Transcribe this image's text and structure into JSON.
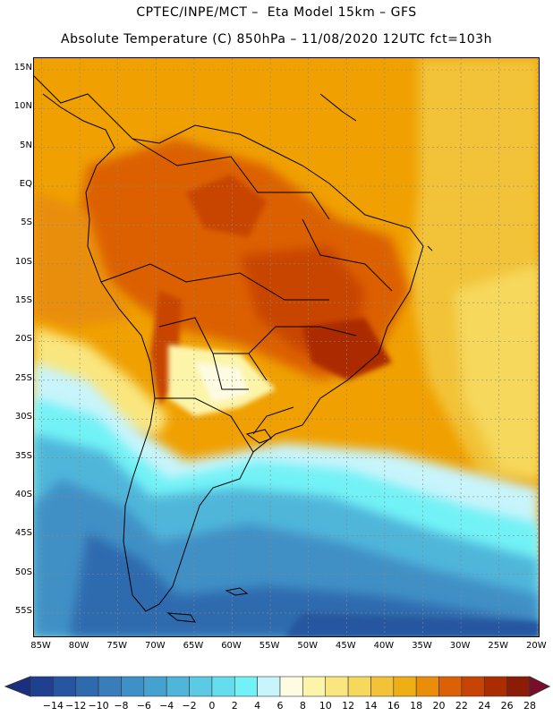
{
  "title": {
    "line1": "CPTEC/INPE/MCT –  Eta Model 15km – GFS",
    "line2": "Absolute Temperature (C) 850hPa – 11/08/2020 12UTC fct=103h"
  },
  "map": {
    "lat_labels": [
      "15N",
      "10N",
      "5N",
      "EQ",
      "5S",
      "10S",
      "15S",
      "20S",
      "25S",
      "30S",
      "35S",
      "40S",
      "45S",
      "50S",
      "55S"
    ],
    "lon_labels": [
      "85W",
      "80W",
      "75W",
      "70W",
      "65W",
      "60W",
      "55W",
      "50W",
      "45W",
      "40W",
      "35W",
      "30W",
      "25W",
      "20W"
    ],
    "lat_values": [
      15,
      10,
      5,
      0,
      -5,
      -10,
      -15,
      -20,
      -25,
      -30,
      -35,
      -40,
      -45,
      -50,
      -55
    ],
    "lon_values": [
      -85,
      -80,
      -75,
      -70,
      -65,
      -60,
      -55,
      -50,
      -45,
      -40,
      -35,
      -30,
      -25,
      -20
    ],
    "lat_range": [
      -58,
      16.5
    ],
    "lon_range": [
      -86,
      -19.8
    ]
  },
  "colorbar": {
    "labels": [
      "-14",
      "-12",
      "-10",
      "-8",
      "-6",
      "-4",
      "-2",
      "0",
      "2",
      "4",
      "6",
      "8",
      "10",
      "12",
      "14",
      "16",
      "18",
      "20",
      "22",
      "24",
      "26",
      "28"
    ],
    "colors": [
      "#1f3f8f",
      "#26569f",
      "#2f6aae",
      "#3a7dbb",
      "#3f90c6",
      "#45a2cf",
      "#4fb6da",
      "#5cc9e5",
      "#66dded",
      "#72f2f6",
      "#c8f4fb",
      "#fdfbe2",
      "#fcf4a8",
      "#f9e67e",
      "#f6d85c",
      "#f2c338",
      "#eeae16",
      "#e98d0a",
      "#dc6105",
      "#c84404",
      "#ac2c02",
      "#8b1c08"
    ],
    "under_color": "#1a2f7f",
    "over_color": "#7a0d2c"
  }
}
